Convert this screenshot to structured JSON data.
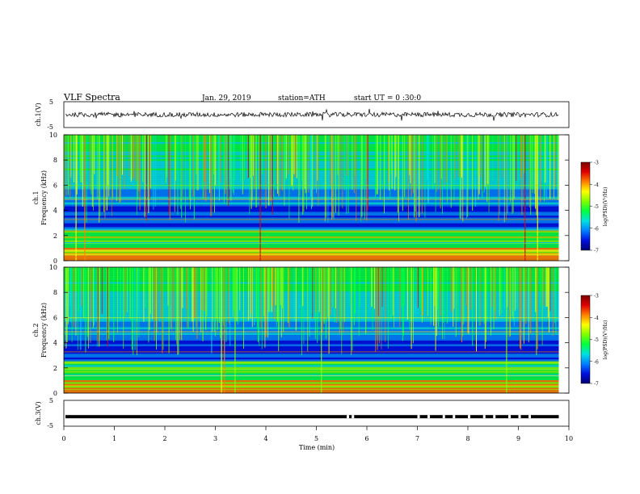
{
  "header": {
    "title": "VLF Spectra",
    "date": "Jan. 29, 2019",
    "station": "station=ATH",
    "start": "start UT = 0 :30:0"
  },
  "colors": {
    "colorbar": [
      "#7a0000",
      "#e00000",
      "#ff8000",
      "#ffff00",
      "#80ff00",
      "#00ff40",
      "#00e0e0",
      "#0080ff",
      "#0010e0",
      "#000070"
    ],
    "waveform": "#000000"
  },
  "chart_data": [
    {
      "id": "ch1-waveform",
      "type": "line",
      "ylabel": "ch.1(V)",
      "ylim": [
        -5,
        5
      ],
      "yticks": [
        "5",
        "-5"
      ],
      "xlim": [
        0,
        10
      ],
      "series": [
        {
          "values_summary": "noisy waveform around 0 V, amplitude approx 1 V, data ends at 9.8 min"
        }
      ]
    },
    {
      "id": "ch1-spectrogram",
      "type": "heatmap",
      "ylabel": "Frequency (kHz)",
      "channel_label": "ch.1",
      "ylim": [
        0,
        10
      ],
      "yticks": [
        "0",
        "2",
        "4",
        "6",
        "8",
        "10"
      ],
      "xlim": [
        0,
        10
      ],
      "data_end_min": 9.8,
      "colorbar": {
        "label": "log(PSD)(V²/Hz)",
        "range": [
          -7,
          -3
        ],
        "ticks": [
          "-3",
          "-4",
          "-5",
          "-6",
          "-7"
        ]
      }
    },
    {
      "id": "ch2-spectrogram",
      "type": "heatmap",
      "ylabel": "Frequency (kHz)",
      "channel_label": "ch.2",
      "ylim": [
        0,
        10
      ],
      "yticks": [
        "0",
        "2",
        "4",
        "6",
        "8",
        "10"
      ],
      "xlim": [
        0,
        10
      ],
      "data_end_min": 9.8,
      "colorbar": {
        "label": "log(PSD)(V²/Hz)",
        "range": [
          -7,
          -3
        ],
        "ticks": [
          "-3",
          "-4",
          "-5",
          "-6",
          "-7"
        ]
      }
    },
    {
      "id": "ch3-waveform",
      "type": "line",
      "ylabel": "ch.3(V)",
      "ylim": [
        -5,
        5
      ],
      "yticks": [
        "5",
        "-5"
      ],
      "xlim": [
        0,
        10
      ],
      "xlabel": "Time (min)",
      "xticks": [
        "0",
        "1",
        "2",
        "3",
        "4",
        "5",
        "6",
        "7",
        "8",
        "9",
        "10"
      ],
      "series": [
        {
          "values_summary": "pulse train near -1 V"
        }
      ]
    }
  ]
}
